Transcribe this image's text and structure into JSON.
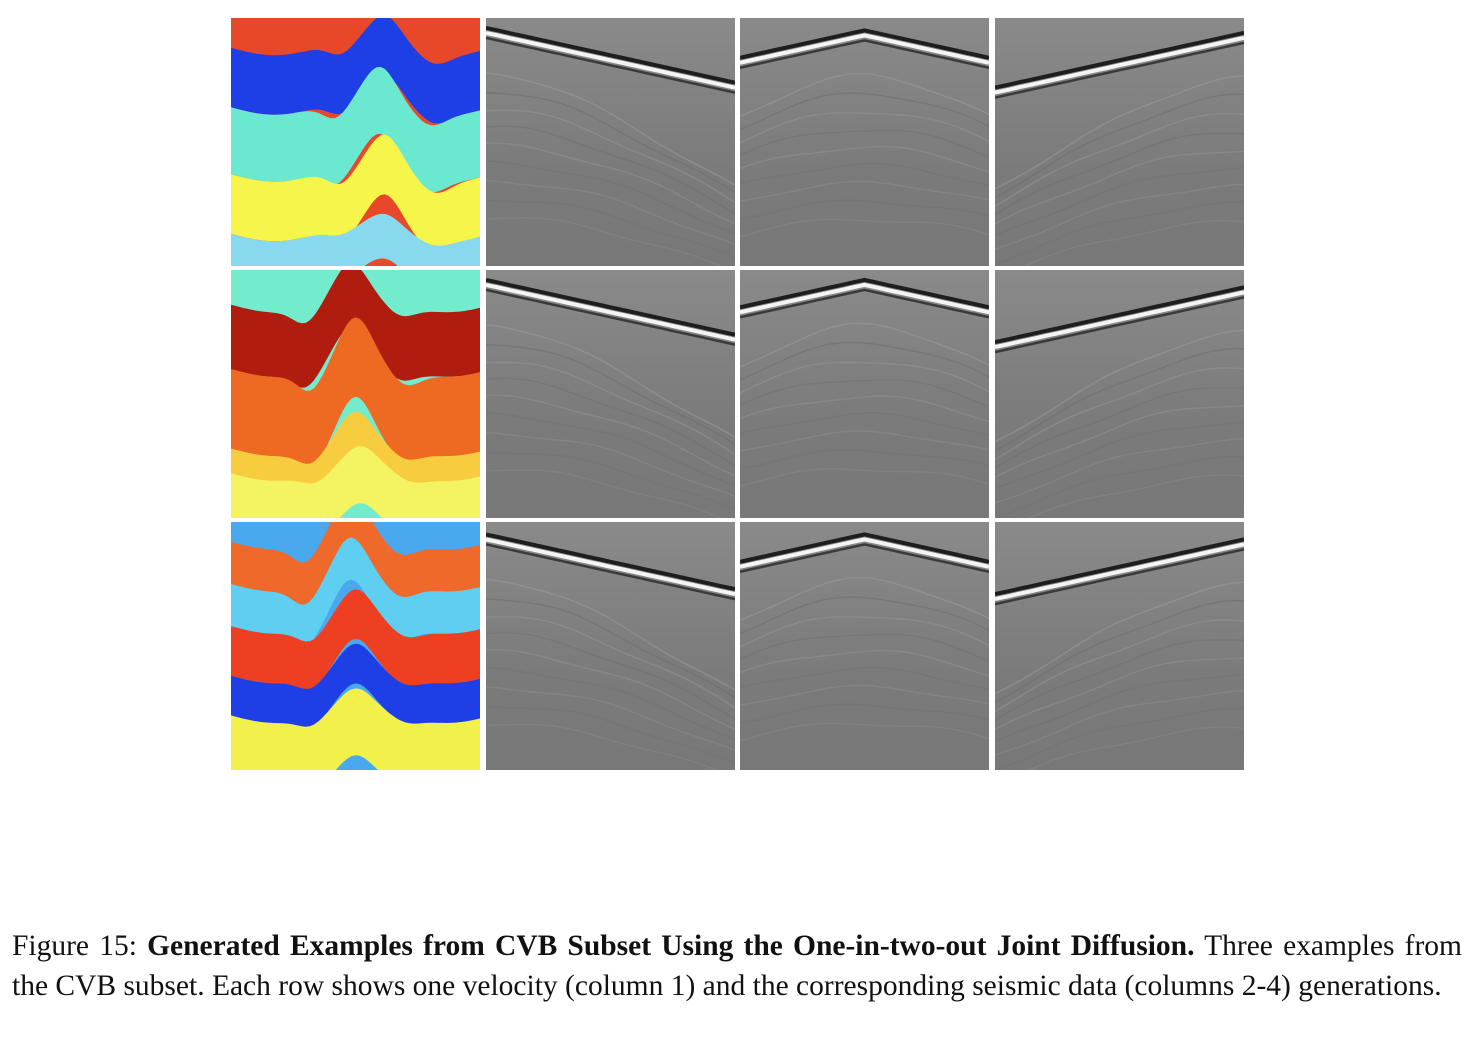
{
  "figure": {
    "rows": [
      {
        "velocity": {
          "background": "#e8482a",
          "bands": [
            {
              "color": "#1f3fe6",
              "top": 0.12,
              "bottom": 0.36,
              "amp": 0.11,
              "phase": 0.62
            },
            {
              "color": "#6ae9d0",
              "top": 0.36,
              "bottom": 0.63,
              "amp": 0.14,
              "phase": 0.6
            },
            {
              "color": "#f6f64a",
              "top": 0.63,
              "bottom": 0.87,
              "amp": 0.14,
              "phase": 0.62
            },
            {
              "color": "#88d9ee",
              "top": 0.87,
              "bottom": 1.05,
              "amp": 0.06,
              "phase": 0.62
            }
          ]
        },
        "seismic": [
          {
            "source": 0.0,
            "apex": 0.06
          },
          {
            "source": 0.5,
            "apex": 0.07
          },
          {
            "source": 1.0,
            "apex": 0.08
          }
        ]
      },
      {
        "velocity": {
          "background": "#73ebcd",
          "bands": [
            {
              "color": "#b01c0e",
              "top": 0.14,
              "bottom": 0.4,
              "amp": 0.14,
              "phase": 0.48
            },
            {
              "color": "#ee6a22",
              "top": 0.4,
              "bottom": 0.72,
              "amp": 0.18,
              "phase": 0.5
            },
            {
              "color": "#f7cc3e",
              "top": 0.72,
              "bottom": 0.95,
              "amp": 0.12,
              "phase": 0.5
            },
            {
              "color": "#f4f463",
              "top": 0.82,
              "bottom": 1.05,
              "amp": 0.08,
              "phase": 0.52
            }
          ]
        },
        "seismic": [
          {
            "source": 0.0,
            "apex": 0.06
          },
          {
            "source": 0.5,
            "apex": 0.06
          },
          {
            "source": 1.0,
            "apex": 0.09
          }
        ]
      },
      {
        "velocity": {
          "background": "#4aa8ee",
          "bands": [
            {
              "color": "#ef6a2a",
              "top": 0.08,
              "bottom": 0.25,
              "amp": 0.16,
              "phase": 0.48
            },
            {
              "color": "#5ecff0",
              "top": 0.25,
              "bottom": 0.42,
              "amp": 0.16,
              "phase": 0.48
            },
            {
              "color": "#ee3f22",
              "top": 0.42,
              "bottom": 0.62,
              "amp": 0.12,
              "phase": 0.5
            },
            {
              "color": "#1e3ee6",
              "top": 0.62,
              "bottom": 0.78,
              "amp": 0.1,
              "phase": 0.5
            },
            {
              "color": "#f2f14c",
              "top": 0.78,
              "bottom": 1.05,
              "amp": 0.08,
              "phase": 0.5
            }
          ]
        },
        "seismic": [
          {
            "source": 0.0,
            "apex": 0.07
          },
          {
            "source": 0.5,
            "apex": 0.07
          },
          {
            "source": 1.0,
            "apex": 0.09
          }
        ]
      }
    ]
  },
  "caption": {
    "label": "Figure 15: ",
    "title": "Generated Examples from CVB Subset Using the One-in-two-out Joint Diffusion.",
    "text": " Three examples from the CVB subset. Each row shows one velocity (column 1) and the corresponding seismic data (columns 2-4) generations."
  }
}
